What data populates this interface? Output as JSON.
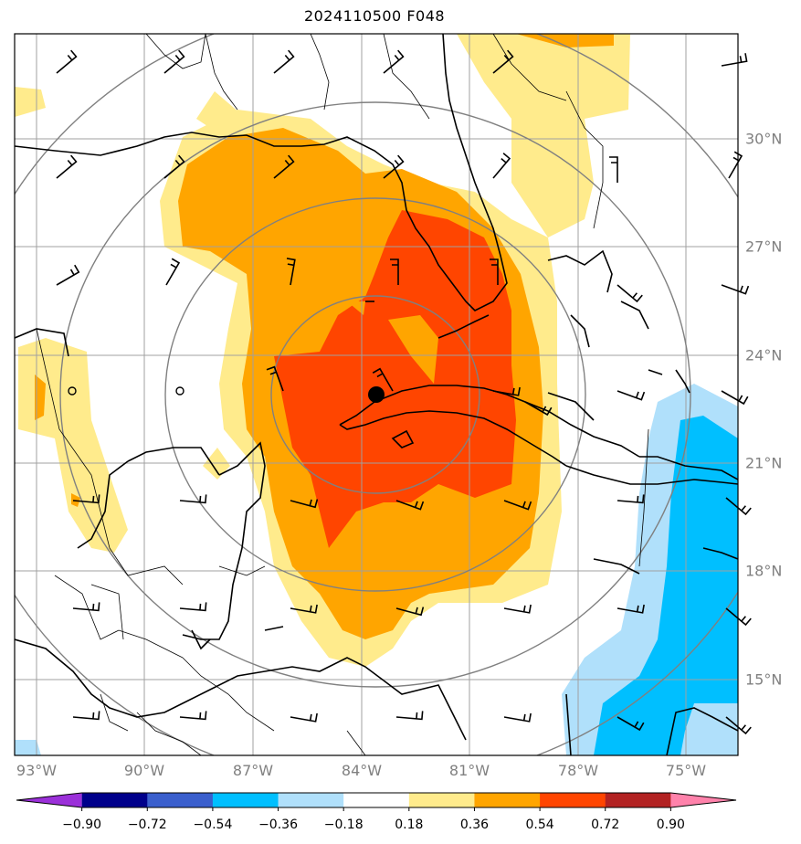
{
  "title": "2024110500 F048",
  "lon_labels": [
    "93°W",
    "90°W",
    "87°W",
    "84°W",
    "81°W",
    "78°W",
    "75°W"
  ],
  "lat_labels": [
    "30°N",
    "27°N",
    "24°N",
    "21°N",
    "18°N",
    "15°N"
  ],
  "colorbar": {
    "ticks": [
      "−0.90",
      "−0.72",
      "−0.54",
      "−0.36",
      "−0.18",
      "0.18",
      "0.36",
      "0.54",
      "0.72",
      "0.90"
    ],
    "colors": [
      "#9b30d9",
      "#00008b",
      "#3a5fcd",
      "#00bfff",
      "#b0e0fb",
      "#ffffff",
      "#ffeb8c",
      "#ffa500",
      "#ff4500",
      "#b22222",
      "#ff82ab"
    ]
  },
  "fill_colors": {
    "light_yellow": "#ffeb8c",
    "orange": "#ffa500",
    "red_orange": "#ff4500",
    "deep_sky_blue": "#00bfff",
    "light_blue": "#b0e0fb"
  },
  "storm_center": {
    "lon": -83.9,
    "lat": 22.9
  }
}
